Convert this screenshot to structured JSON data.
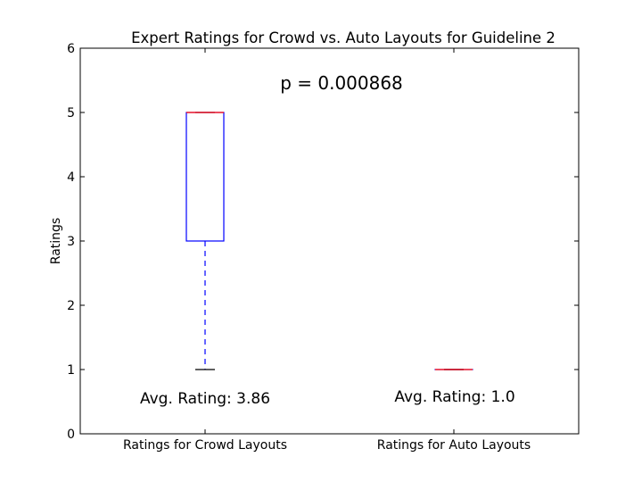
{
  "chart_data": {
    "type": "box",
    "title": "Expert Ratings for Crowd vs. Auto Layouts for Guideline 2",
    "xlabel": "",
    "ylabel": "Ratings",
    "ylim": [
      0,
      6
    ],
    "yticks": [
      0,
      1,
      2,
      3,
      4,
      5,
      6
    ],
    "grid": false,
    "categories": [
      "Ratings for Crowd Layouts",
      "Ratings for Auto Layouts"
    ],
    "boxes": [
      {
        "name": "Ratings for Crowd Layouts",
        "whisker_low": 1,
        "q1": 3,
        "median": 5,
        "q3": 5,
        "whisker_high": 5
      },
      {
        "name": "Ratings for Auto Layouts",
        "whisker_low": 1,
        "q1": 1,
        "median": 1,
        "q3": 1,
        "whisker_high": 1
      }
    ],
    "annotations": {
      "p_value": "p = 0.000868",
      "avg_labels": [
        "Avg. Rating: 3.86",
        "Avg. Rating: 1.0"
      ]
    },
    "colors": {
      "box": "#0000ff",
      "median": "#ff0000",
      "whisker": "#0000ff",
      "cap": "#000000"
    }
  }
}
